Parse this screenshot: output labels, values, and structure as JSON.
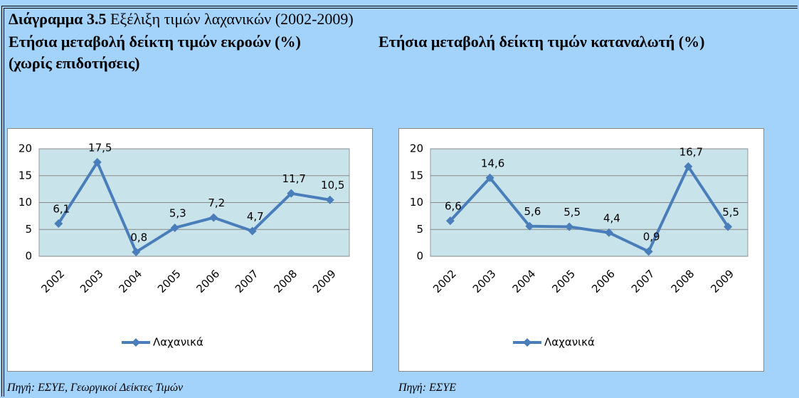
{
  "header": {
    "label": "Διάγραμμα 3.5",
    "title": "Εξέλιξη τιμών λαχανικών (2002-2009)"
  },
  "chart_data": [
    {
      "type": "line",
      "title": "Ετήσια μεταβολή δείκτη τιμών εκροών (%)",
      "subtitle": "(χωρίς επιδοτήσεις)",
      "categories": [
        "2002",
        "2003",
        "2004",
        "2005",
        "2006",
        "2007",
        "2008",
        "2009"
      ],
      "series": [
        {
          "name": "Λαχανικά",
          "color": "#4a7ebb",
          "values": [
            6.1,
            17.5,
            0.8,
            5.3,
            7.2,
            4.7,
            11.7,
            10.5
          ],
          "value_labels": [
            "6,1",
            "17,5",
            "0,8",
            "5,3",
            "7,2",
            "4,7",
            "11,7",
            "10,5"
          ]
        }
      ],
      "ylim": [
        0,
        20
      ],
      "yticks": [
        0,
        5,
        10,
        15,
        20
      ],
      "grid": true,
      "source": "Πηγή: ΕΣΥΕ, Γεωργικοί Δείκτες Τιμών"
    },
    {
      "type": "line",
      "title": "Ετήσια μεταβολή δείκτη τιμών καταναλωτή (%)",
      "categories": [
        "2002",
        "2003",
        "2004",
        "2005",
        "2006",
        "2007",
        "2008",
        "2009"
      ],
      "series": [
        {
          "name": "Λαχανικά",
          "color": "#4a7ebb",
          "values": [
            6.6,
            14.6,
            5.6,
            5.5,
            4.4,
            0.9,
            16.7,
            5.5
          ],
          "value_labels": [
            "6,6",
            "14,6",
            "5,6",
            "5,5",
            "4,4",
            "0,9",
            "16,7",
            "5,5"
          ]
        }
      ],
      "ylim": [
        0,
        20
      ],
      "yticks": [
        0,
        5,
        10,
        15,
        20
      ],
      "grid": true,
      "source": "Πηγή: ΕΣΥΕ"
    }
  ]
}
